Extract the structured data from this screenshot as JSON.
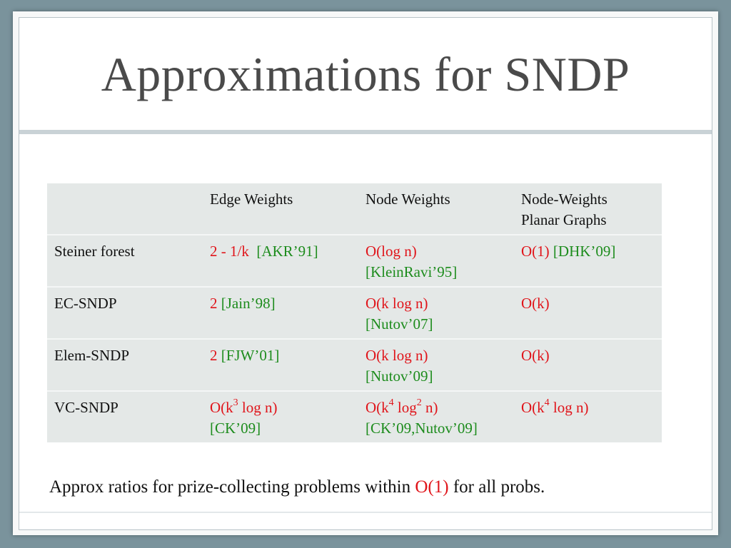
{
  "slide": {
    "title": "Approximations for SNDP",
    "colors": {
      "red": "#e0141a",
      "green": "#1d8c1d",
      "table_bg": "#e4e8e7"
    }
  },
  "table": {
    "headers": [
      "",
      "Edge Weights",
      "Node Weights",
      "Node-Weights",
      "Planar Graphs"
    ],
    "rows": [
      {
        "label": "Steiner forest",
        "edge": [
          "2 - 1/k",
          "[AKR’91]"
        ],
        "node": [
          "O(log n)",
          "[KleinRavi’95]"
        ],
        "planar": [
          "O(1)",
          "[DHK’09]"
        ]
      },
      {
        "label": "EC-SNDP",
        "edge": [
          "2",
          "[Jain’98]"
        ],
        "node": [
          "O(k log n)",
          "[Nutov’07]"
        ],
        "planar": [
          "O(k)"
        ]
      },
      {
        "label": "Elem-SNDP",
        "edge": [
          "2",
          "[FJW’01]"
        ],
        "node": [
          "O(k log n)",
          "[Nutov’09]"
        ],
        "planar": [
          "O(k)"
        ]
      },
      {
        "label": "VC-SNDP",
        "edge": [
          "O(k",
          "3",
          " log n)",
          "[CK’09]"
        ],
        "node": [
          "O(k",
          "4",
          " log",
          "2",
          " n)",
          "[CK’09,Nutov’09]"
        ],
        "planar": [
          "O(k",
          "4",
          " log n)"
        ]
      }
    ]
  },
  "footer": {
    "prefix": "Approx ratios for prize-collecting problems within ",
    "highlight": "O(1)",
    "suffix": " for all probs."
  }
}
